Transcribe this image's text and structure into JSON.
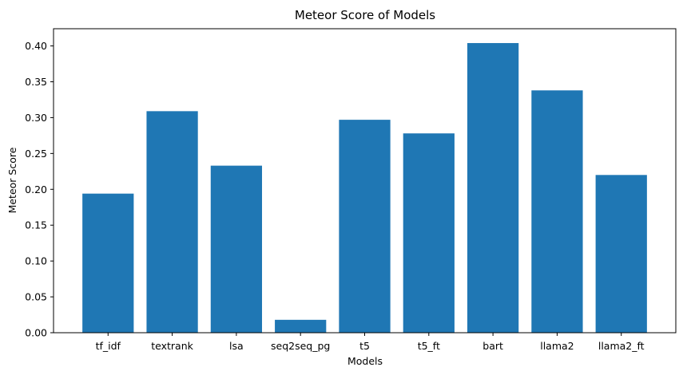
{
  "chart_data": {
    "type": "bar",
    "title": "Meteor Score of Models",
    "xlabel": "Models",
    "ylabel": "Meteor Score",
    "categories": [
      "tf_idf",
      "textrank",
      "lsa",
      "seq2seq_pg",
      "t5",
      "t5_ft",
      "bart",
      "llama2",
      "llama2_ft"
    ],
    "values": [
      0.194,
      0.309,
      0.233,
      0.018,
      0.297,
      0.278,
      0.404,
      0.338,
      0.22
    ],
    "ylim": [
      0,
      0.424
    ],
    "yticks": [
      "0.00",
      "0.05",
      "0.10",
      "0.15",
      "0.20",
      "0.25",
      "0.30",
      "0.35",
      "0.40"
    ],
    "bar_color": "#1f77b4",
    "grid": false,
    "legend": "none"
  }
}
